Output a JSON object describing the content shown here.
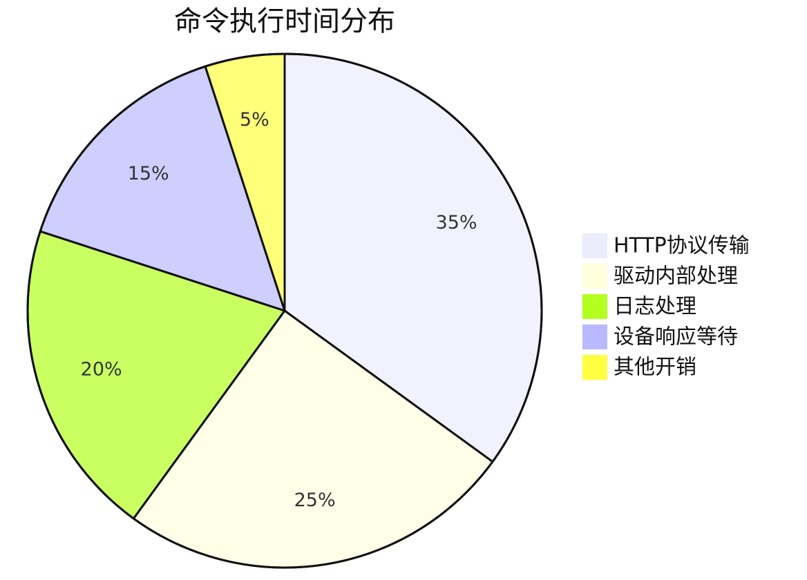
{
  "chart_data": {
    "type": "pie",
    "title": "命令执行时间分布",
    "categories": [
      "HTTP协议传输",
      "驱动内部处理",
      "日志处理",
      "设备响应等待",
      "其他开销"
    ],
    "values": [
      35,
      25,
      20,
      15,
      5
    ],
    "value_labels": [
      "35%",
      "25%",
      "20%",
      "15%",
      "5%"
    ],
    "colors": [
      "#ececff",
      "#ffffde",
      "#b3ff1f",
      "#b9b9ff",
      "#ffff42"
    ],
    "legend": "right"
  }
}
